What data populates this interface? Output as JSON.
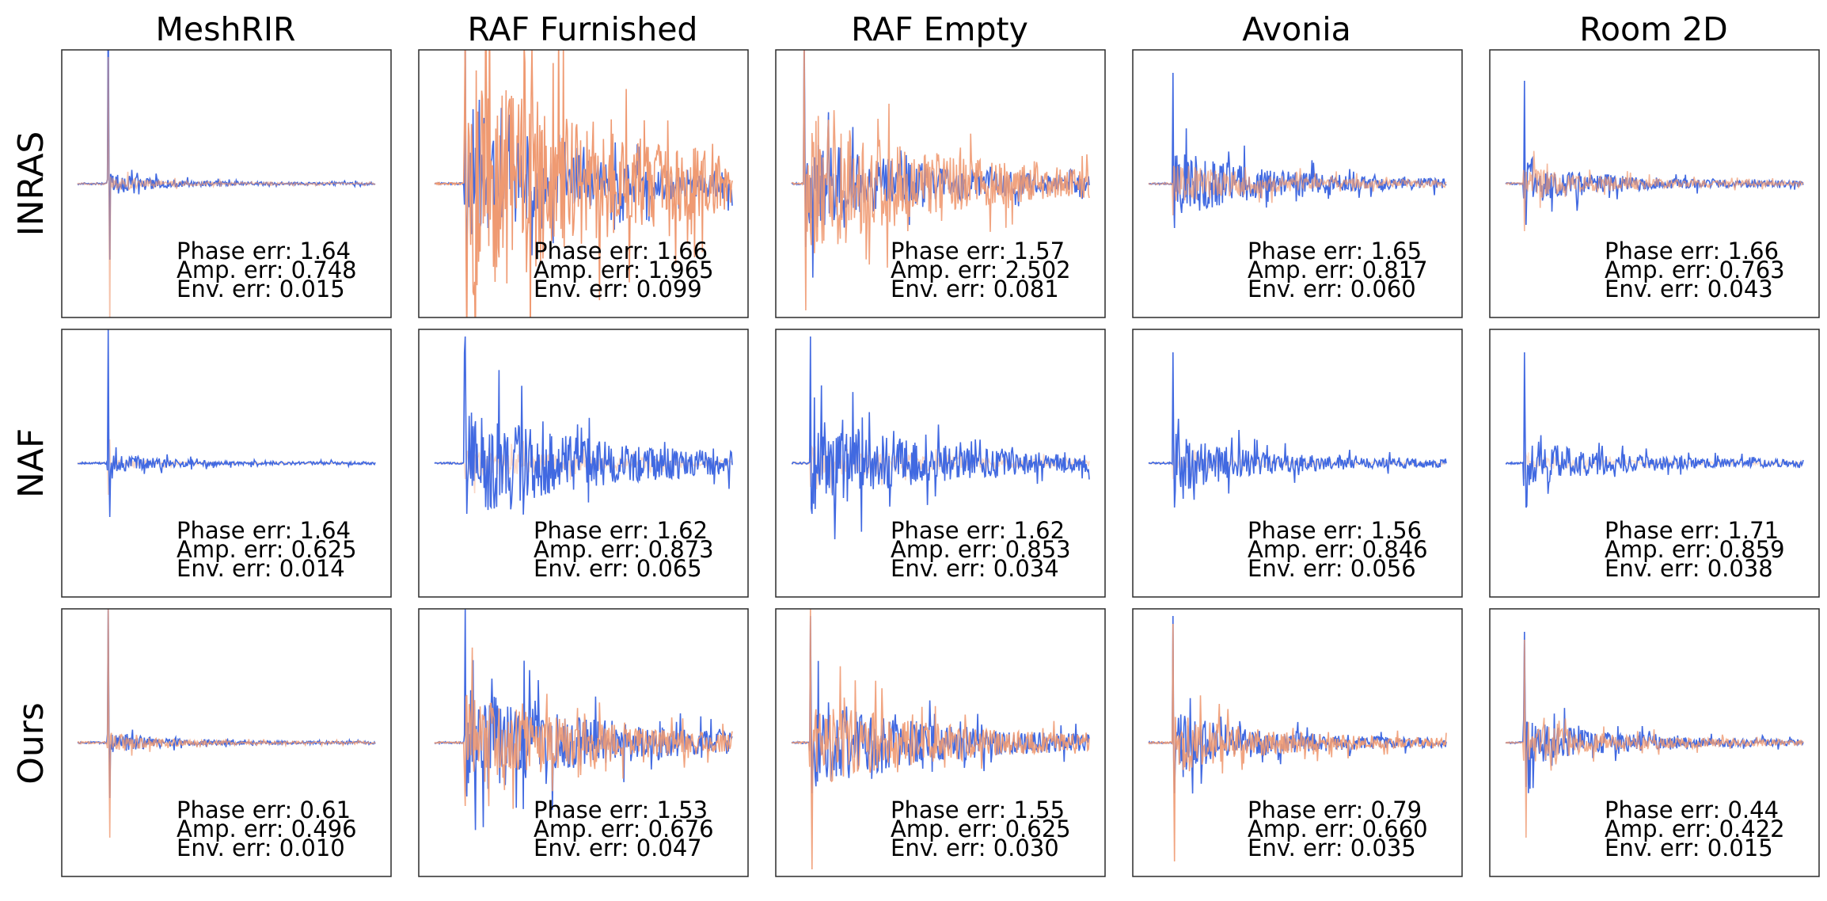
{
  "columns": [
    "MeshRIR",
    "RAF Furnished",
    "RAF Empty",
    "Avonia",
    "Room 2D"
  ],
  "rows": [
    "INRAS",
    "NAF",
    "Ours"
  ],
  "colors": {
    "reference": "#4169e1",
    "prediction": "#ef9a72"
  },
  "chart_data": {
    "type": "line",
    "description_kind": "grid of room impulse response waveforms (ground truth vs. predicted) with error metrics",
    "series_colors": [
      "#4169e1",
      "#ef9a72"
    ],
    "metrics": [
      {
        "row": "INRAS",
        "column": "MeshRIR",
        "phase": "1.64",
        "amp": "0.748",
        "env": "0.015"
      },
      {
        "row": "INRAS",
        "column": "RAF Furnished",
        "phase": "1.66",
        "amp": "1.965",
        "env": "0.099"
      },
      {
        "row": "INRAS",
        "column": "RAF Empty",
        "phase": "1.57",
        "amp": "2.502",
        "env": "0.081"
      },
      {
        "row": "INRAS",
        "column": "Avonia",
        "phase": "1.65",
        "amp": "0.817",
        "env": "0.060"
      },
      {
        "row": "INRAS",
        "column": "Room 2D",
        "phase": "1.66",
        "amp": "0.763",
        "env": "0.043"
      },
      {
        "row": "NAF",
        "column": "MeshRIR",
        "phase": "1.64",
        "amp": "0.625",
        "env": "0.014"
      },
      {
        "row": "NAF",
        "column": "RAF Furnished",
        "phase": "1.62",
        "amp": "0.873",
        "env": "0.065"
      },
      {
        "row": "NAF",
        "column": "RAF Empty",
        "phase": "1.62",
        "amp": "0.853",
        "env": "0.034"
      },
      {
        "row": "NAF",
        "column": "Avonia",
        "phase": "1.56",
        "amp": "0.846",
        "env": "0.056"
      },
      {
        "row": "NAF",
        "column": "Room 2D",
        "phase": "1.71",
        "amp": "0.859",
        "env": "0.038"
      },
      {
        "row": "Ours",
        "column": "MeshRIR",
        "phase": "0.61",
        "amp": "0.496",
        "env": "0.010"
      },
      {
        "row": "Ours",
        "column": "RAF Furnished",
        "phase": "1.53",
        "amp": "0.676",
        "env": "0.047"
      },
      {
        "row": "Ours",
        "column": "RAF Empty",
        "phase": "1.55",
        "amp": "0.625",
        "env": "0.030"
      },
      {
        "row": "Ours",
        "column": "Avonia",
        "phase": "0.79",
        "amp": "0.660",
        "env": "0.035"
      },
      {
        "row": "Ours",
        "column": "Room 2D",
        "phase": "0.44",
        "amp": "0.422",
        "env": "0.015"
      }
    ]
  }
}
